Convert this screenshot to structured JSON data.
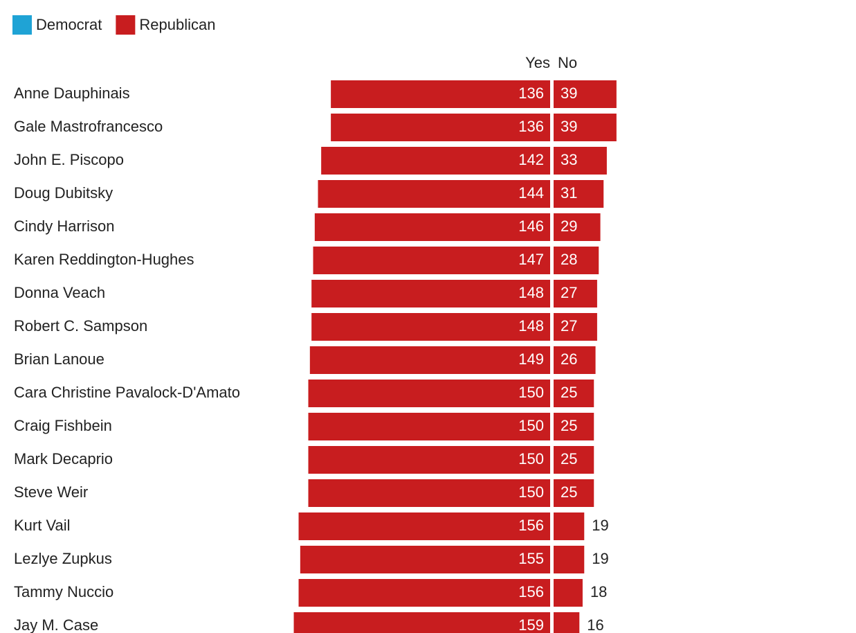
{
  "chart_data": {
    "type": "diverging-bar",
    "legend": [
      {
        "name": "Democrat",
        "color": "#1fa3d5"
      },
      {
        "name": "Republican",
        "color": "#c81d1f"
      }
    ],
    "categories": [
      "Anne Dauphinais",
      "Gale Mastrofrancesco",
      "John E. Piscopo",
      "Doug Dubitsky",
      "Cindy Harrison",
      "Karen Reddington-Hughes",
      "Donna Veach",
      "Robert C. Sampson",
      "Brian Lanoue",
      "Cara Christine Pavalock-D'Amato",
      "Craig Fishbein",
      "Mark Decaprio",
      "Steve Weir",
      "Kurt Vail",
      "Lezlye Zupkus",
      "Tammy Nuccio",
      "Jay M. Case"
    ],
    "party": [
      "Republican",
      "Republican",
      "Republican",
      "Republican",
      "Republican",
      "Republican",
      "Republican",
      "Republican",
      "Republican",
      "Republican",
      "Republican",
      "Republican",
      "Republican",
      "Republican",
      "Republican",
      "Republican",
      "Republican"
    ],
    "series": [
      {
        "name": "Yes",
        "values": [
          136,
          136,
          142,
          144,
          146,
          147,
          148,
          148,
          149,
          150,
          150,
          150,
          150,
          156,
          155,
          156,
          159
        ]
      },
      {
        "name": "No",
        "values": [
          39,
          39,
          33,
          31,
          29,
          28,
          27,
          27,
          26,
          25,
          25,
          25,
          25,
          19,
          19,
          18,
          16
        ]
      }
    ]
  }
}
